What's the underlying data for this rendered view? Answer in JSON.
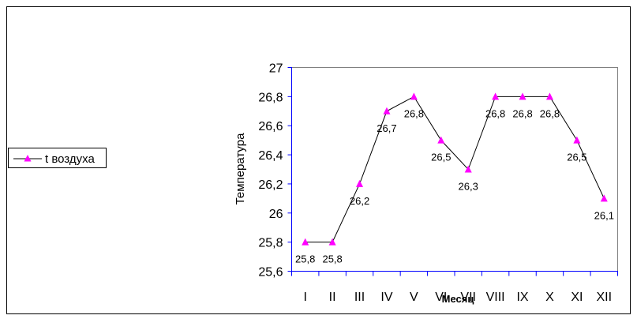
{
  "chart_data": {
    "type": "line",
    "categories": [
      "I",
      "II",
      "III",
      "IV",
      "V",
      "VI",
      "VII",
      "VIII",
      "IX",
      "X",
      "XI",
      "XII"
    ],
    "series": [
      {
        "name": "t воздуха",
        "values": [
          25.8,
          25.8,
          26.2,
          26.7,
          26.8,
          26.5,
          26.3,
          26.8,
          26.8,
          26.8,
          26.5,
          26.1
        ],
        "labels": [
          "25,8",
          "25,8",
          "26,2",
          "26,7",
          "26,8",
          "26,5",
          "26,3",
          "26,8",
          "26,8",
          "26,8",
          "26,5",
          "26,1"
        ],
        "color": "#ff00ff"
      }
    ],
    "ylim": [
      25.6,
      27.0
    ],
    "yticks": [
      25.6,
      25.8,
      26.0,
      26.2,
      26.4,
      26.6,
      26.8,
      27.0
    ],
    "ytick_labels": [
      "25,6",
      "25,8",
      "26",
      "26,2",
      "26,4",
      "26,6",
      "26,8",
      "27"
    ],
    "xlabel": "Месяц",
    "ylabel": "Температура",
    "grid": false,
    "legend": "left",
    "axis_color": "#0000ff"
  }
}
